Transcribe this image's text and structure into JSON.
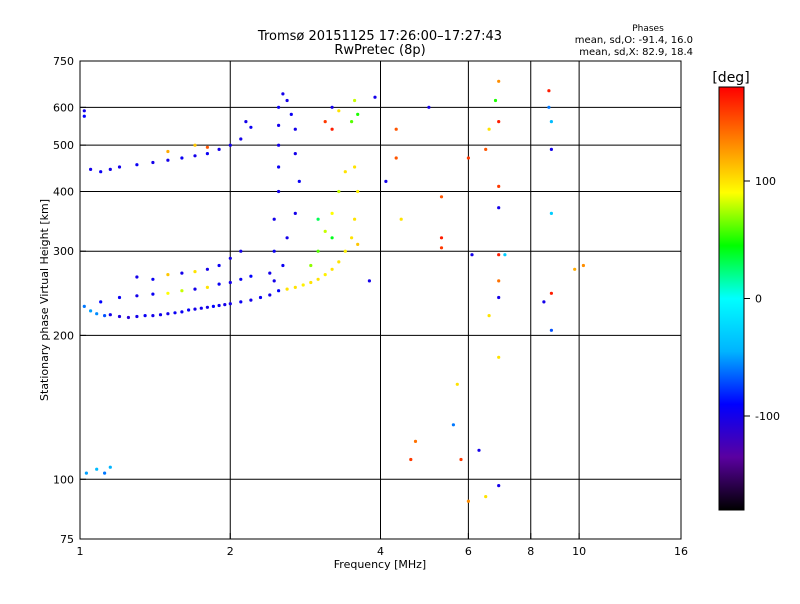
{
  "chart_data": {
    "type": "scatter",
    "title": "Tromsø 20151125 17:26:00–17:27:43",
    "subtitle": "RwPretec (8p)",
    "xlabel": "Frequency [MHz]",
    "ylabel": "Stationary phase Virtual Height [km]",
    "x_scale": "log",
    "y_scale": "log",
    "xlim": [
      1,
      16
    ],
    "ylim": [
      75,
      750
    ],
    "x_ticks": [
      1,
      2,
      4,
      6,
      8,
      10,
      16
    ],
    "x_tick_labels": [
      "1",
      "2",
      "4",
      "6",
      "8",
      "10",
      "16"
    ],
    "y_ticks": [
      75,
      100,
      200,
      300,
      400,
      500,
      600,
      750
    ],
    "y_tick_labels": [
      "75",
      "100",
      "200",
      "300",
      "400",
      "500",
      "600",
      "750"
    ],
    "grid_x": [
      2,
      4,
      6,
      8,
      10
    ],
    "grid_y": [
      100,
      200,
      300,
      400,
      500,
      600
    ],
    "grid": true,
    "stats": {
      "header": "Phases",
      "line_o": "mean, sd,O: -91.4, 16.0",
      "line_x": "mean, sd,X: 82.9, 18.4"
    },
    "colorbar": {
      "label": "[deg]",
      "range": [
        -180,
        180
      ],
      "ticks": [
        100,
        0,
        -100
      ],
      "tick_labels": [
        "100",
        "0",
        "-100"
      ],
      "colors": [
        "#000000",
        "#5a00a0",
        "#0000ff",
        "#00b4ff",
        "#00ffff",
        "#00ff00",
        "#ffff00",
        "#ff8000",
        "#ff0000"
      ]
    },
    "series": [
      {
        "points": [
          {
            "f": 1.02,
            "h": 230,
            "p": -60
          },
          {
            "f": 1.05,
            "h": 225,
            "p": -50
          },
          {
            "f": 1.08,
            "h": 222,
            "p": -55
          },
          {
            "f": 1.12,
            "h": 220,
            "p": -70
          },
          {
            "f": 1.15,
            "h": 221,
            "p": -100
          },
          {
            "f": 1.2,
            "h": 219,
            "p": -105
          },
          {
            "f": 1.25,
            "h": 218,
            "p": -110
          },
          {
            "f": 1.3,
            "h": 219,
            "p": -100
          },
          {
            "f": 1.35,
            "h": 220,
            "p": -95
          },
          {
            "f": 1.4,
            "h": 220,
            "p": -100
          },
          {
            "f": 1.45,
            "h": 221,
            "p": -98
          },
          {
            "f": 1.5,
            "h": 222,
            "p": -100
          },
          {
            "f": 1.55,
            "h": 223,
            "p": -95
          },
          {
            "f": 1.6,
            "h": 224,
            "p": -95
          },
          {
            "f": 1.65,
            "h": 226,
            "p": -92
          },
          {
            "f": 1.7,
            "h": 227,
            "p": -100
          },
          {
            "f": 1.75,
            "h": 228,
            "p": -98
          },
          {
            "f": 1.8,
            "h": 229,
            "p": -100
          },
          {
            "f": 1.85,
            "h": 230,
            "p": -90
          },
          {
            "f": 1.9,
            "h": 231,
            "p": -95
          },
          {
            "f": 1.95,
            "h": 232,
            "p": -100
          },
          {
            "f": 2.0,
            "h": 233,
            "p": -100
          },
          {
            "f": 2.1,
            "h": 235,
            "p": -95
          },
          {
            "f": 2.2,
            "h": 237,
            "p": -100
          },
          {
            "f": 2.3,
            "h": 240,
            "p": -95
          },
          {
            "f": 2.4,
            "h": 243,
            "p": -100
          },
          {
            "f": 2.5,
            "h": 248,
            "p": -90
          },
          {
            "f": 1.1,
            "h": 235,
            "p": -90
          },
          {
            "f": 1.2,
            "h": 240,
            "p": -95
          },
          {
            "f": 1.3,
            "h": 242,
            "p": -100
          },
          {
            "f": 1.4,
            "h": 244,
            "p": -95
          },
          {
            "f": 1.5,
            "h": 245,
            "p": 90
          },
          {
            "f": 1.6,
            "h": 248,
            "p": 80
          },
          {
            "f": 1.7,
            "h": 250,
            "p": -100
          },
          {
            "f": 1.8,
            "h": 252,
            "p": 100
          },
          {
            "f": 1.9,
            "h": 256,
            "p": -95
          },
          {
            "f": 2.0,
            "h": 258,
            "p": -100
          },
          {
            "f": 2.1,
            "h": 262,
            "p": -95
          },
          {
            "f": 2.2,
            "h": 266,
            "p": -90
          },
          {
            "f": 1.3,
            "h": 265,
            "p": -100
          },
          {
            "f": 1.4,
            "h": 262,
            "p": -95
          },
          {
            "f": 1.5,
            "h": 268,
            "p": 110
          },
          {
            "f": 1.6,
            "h": 270,
            "p": -100
          },
          {
            "f": 1.7,
            "h": 272,
            "p": 100
          },
          {
            "f": 1.8,
            "h": 275,
            "p": -100
          },
          {
            "f": 1.9,
            "h": 280,
            "p": -95
          },
          {
            "f": 2.0,
            "h": 290,
            "p": -100
          },
          {
            "f": 2.1,
            "h": 300,
            "p": -100
          },
          {
            "f": 1.05,
            "h": 445,
            "p": -100
          },
          {
            "f": 1.1,
            "h": 440,
            "p": -95
          },
          {
            "f": 1.15,
            "h": 445,
            "p": -100
          },
          {
            "f": 1.2,
            "h": 450,
            "p": -100
          },
          {
            "f": 1.3,
            "h": 455,
            "p": -95
          },
          {
            "f": 1.4,
            "h": 460,
            "p": -100
          },
          {
            "f": 1.5,
            "h": 465,
            "p": -100
          },
          {
            "f": 1.6,
            "h": 470,
            "p": -95
          },
          {
            "f": 1.7,
            "h": 475,
            "p": -100
          },
          {
            "f": 1.8,
            "h": 480,
            "p": -95
          },
          {
            "f": 1.9,
            "h": 490,
            "p": -100
          },
          {
            "f": 2.0,
            "h": 500,
            "p": -100
          },
          {
            "f": 2.1,
            "h": 515,
            "p": -100
          },
          {
            "f": 2.15,
            "h": 560,
            "p": -100
          },
          {
            "f": 2.2,
            "h": 545,
            "p": -95
          },
          {
            "f": 1.5,
            "h": 485,
            "p": 120
          },
          {
            "f": 1.7,
            "h": 500,
            "p": 110
          },
          {
            "f": 1.8,
            "h": 495,
            "p": 150
          },
          {
            "f": 1.02,
            "h": 590,
            "p": -100
          },
          {
            "f": 1.02,
            "h": 575,
            "p": -90
          },
          {
            "f": 2.45,
            "h": 260,
            "p": -100
          },
          {
            "f": 2.45,
            "h": 300,
            "p": -95
          },
          {
            "f": 2.45,
            "h": 350,
            "p": -100
          },
          {
            "f": 2.5,
            "h": 400,
            "p": -100
          },
          {
            "f": 2.5,
            "h": 450,
            "p": -95
          },
          {
            "f": 2.5,
            "h": 500,
            "p": -100
          },
          {
            "f": 2.5,
            "h": 550,
            "p": -100
          },
          {
            "f": 2.5,
            "h": 600,
            "p": -95
          },
          {
            "f": 2.55,
            "h": 640,
            "p": -100
          },
          {
            "f": 2.6,
            "h": 620,
            "p": -100
          },
          {
            "f": 2.65,
            "h": 580,
            "p": -95
          },
          {
            "f": 2.7,
            "h": 540,
            "p": -100
          },
          {
            "f": 2.7,
            "h": 480,
            "p": -100
          },
          {
            "f": 2.75,
            "h": 420,
            "p": -95
          },
          {
            "f": 2.7,
            "h": 360,
            "p": -100
          },
          {
            "f": 2.6,
            "h": 320,
            "p": -100
          },
          {
            "f": 2.55,
            "h": 280,
            "p": -95
          },
          {
            "f": 2.4,
            "h": 270,
            "p": -100
          },
          {
            "f": 2.6,
            "h": 250,
            "p": 100
          },
          {
            "f": 2.7,
            "h": 252,
            "p": 100
          },
          {
            "f": 2.8,
            "h": 255,
            "p": 95
          },
          {
            "f": 2.9,
            "h": 258,
            "p": 100
          },
          {
            "f": 3.0,
            "h": 262,
            "p": 100
          },
          {
            "f": 3.1,
            "h": 268,
            "p": 95
          },
          {
            "f": 3.2,
            "h": 275,
            "p": 100
          },
          {
            "f": 3.3,
            "h": 285,
            "p": 100
          },
          {
            "f": 3.4,
            "h": 300,
            "p": 95
          },
          {
            "f": 3.5,
            "h": 320,
            "p": 100
          },
          {
            "f": 3.55,
            "h": 350,
            "p": 100
          },
          {
            "f": 3.6,
            "h": 400,
            "p": 95
          },
          {
            "f": 3.55,
            "h": 450,
            "p": 100
          },
          {
            "f": 2.9,
            "h": 280,
            "p": 70
          },
          {
            "f": 3.0,
            "h": 300,
            "p": 60
          },
          {
            "f": 3.1,
            "h": 330,
            "p": 80
          },
          {
            "f": 3.2,
            "h": 360,
            "p": 90
          },
          {
            "f": 3.3,
            "h": 400,
            "p": 80
          },
          {
            "f": 3.4,
            "h": 440,
            "p": 100
          },
          {
            "f": 3.0,
            "h": 350,
            "p": 30
          },
          {
            "f": 3.2,
            "h": 320,
            "p": 40
          },
          {
            "f": 3.5,
            "h": 560,
            "p": 60
          },
          {
            "f": 3.6,
            "h": 580,
            "p": 50
          },
          {
            "f": 3.55,
            "h": 620,
            "p": 80
          },
          {
            "f": 3.1,
            "h": 560,
            "p": 160
          },
          {
            "f": 3.2,
            "h": 540,
            "p": 170
          },
          {
            "f": 3.2,
            "h": 600,
            "p": -100
          },
          {
            "f": 3.3,
            "h": 590,
            "p": 100
          },
          {
            "f": 3.6,
            "h": 310,
            "p": 110
          },
          {
            "f": 3.8,
            "h": 260,
            "p": -100
          },
          {
            "f": 3.9,
            "h": 630,
            "p": -100
          },
          {
            "f": 4.1,
            "h": 420,
            "p": -100
          },
          {
            "f": 4.3,
            "h": 540,
            "p": 150
          },
          {
            "f": 4.3,
            "h": 470,
            "p": 150
          },
          {
            "f": 4.4,
            "h": 350,
            "p": 100
          },
          {
            "f": 4.6,
            "h": 110,
            "p": 160
          },
          {
            "f": 4.7,
            "h": 120,
            "p": 140
          },
          {
            "f": 5.0,
            "h": 600,
            "p": -100
          },
          {
            "f": 5.3,
            "h": 320,
            "p": 170
          },
          {
            "f": 5.3,
            "h": 305,
            "p": 160
          },
          {
            "f": 5.3,
            "h": 390,
            "p": 150
          },
          {
            "f": 5.6,
            "h": 130,
            "p": -60
          },
          {
            "f": 5.7,
            "h": 158,
            "p": 100
          },
          {
            "f": 5.8,
            "h": 110,
            "p": 160
          },
          {
            "f": 6.0,
            "h": 90,
            "p": 130
          },
          {
            "f": 6.0,
            "h": 470,
            "p": 160
          },
          {
            "f": 6.1,
            "h": 295,
            "p": -100
          },
          {
            "f": 6.3,
            "h": 115,
            "p": -100
          },
          {
            "f": 6.5,
            "h": 92,
            "p": 100
          },
          {
            "f": 6.5,
            "h": 490,
            "p": 150
          },
          {
            "f": 6.6,
            "h": 540,
            "p": 100
          },
          {
            "f": 6.6,
            "h": 220,
            "p": 100
          },
          {
            "f": 6.8,
            "h": 620,
            "p": 50
          },
          {
            "f": 6.9,
            "h": 680,
            "p": 130
          },
          {
            "f": 6.9,
            "h": 560,
            "p": 170
          },
          {
            "f": 6.9,
            "h": 410,
            "p": 160
          },
          {
            "f": 6.9,
            "h": 370,
            "p": -100
          },
          {
            "f": 6.9,
            "h": 295,
            "p": 170
          },
          {
            "f": 6.9,
            "h": 260,
            "p": 140
          },
          {
            "f": 6.9,
            "h": 240,
            "p": -100
          },
          {
            "f": 6.9,
            "h": 180,
            "p": 100
          },
          {
            "f": 6.9,
            "h": 97,
            "p": -100
          },
          {
            "f": 7.1,
            "h": 295,
            "p": -30
          },
          {
            "f": 8.7,
            "h": 650,
            "p": 170
          },
          {
            "f": 8.7,
            "h": 600,
            "p": -60
          },
          {
            "f": 8.8,
            "h": 560,
            "p": -40
          },
          {
            "f": 8.8,
            "h": 490,
            "p": -100
          },
          {
            "f": 8.8,
            "h": 360,
            "p": -30
          },
          {
            "f": 8.8,
            "h": 245,
            "p": 170
          },
          {
            "f": 8.5,
            "h": 235,
            "p": -100
          },
          {
            "f": 8.8,
            "h": 205,
            "p": -70
          },
          {
            "f": 9.8,
            "h": 275,
            "p": 120
          },
          {
            "f": 10.2,
            "h": 280,
            "p": 130
          },
          {
            "f": 1.03,
            "h": 103,
            "p": -50
          },
          {
            "f": 1.08,
            "h": 105,
            "p": -40
          },
          {
            "f": 1.12,
            "h": 103,
            "p": -60
          },
          {
            "f": 1.15,
            "h": 106,
            "p": -45
          }
        ]
      }
    ]
  }
}
